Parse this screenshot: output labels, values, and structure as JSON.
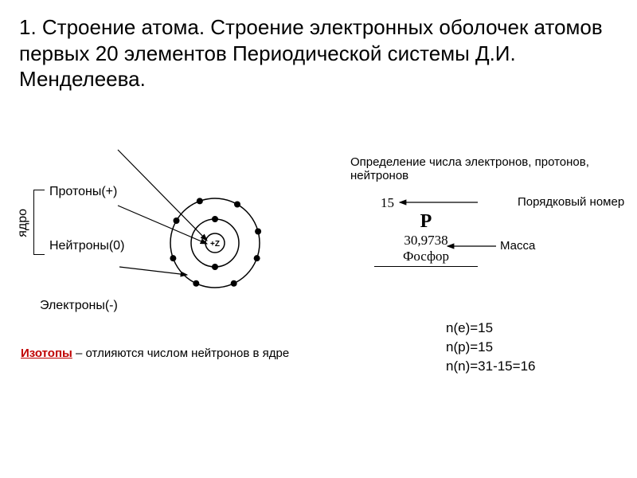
{
  "title": "1. Строение атома. Строение электронных оболочек атомов первых 20 элементов Периодической системы Д.И. Менделеева.",
  "subhead": "Определение числа электронов, протонов, нейтронов",
  "atom": {
    "nucleus_label": "ядро",
    "proton_label": "Протоны(+)",
    "neutron_label": "Нейтроны(0)",
    "electron_label": "Электроны(-)",
    "center_label": "+Z",
    "shell_radii": [
      30,
      56
    ],
    "nucleus_radius": 12,
    "electrons_inner_angles": [
      90,
      270
    ],
    "electrons_outer_angles": [
      20,
      65,
      115,
      160,
      210,
      250,
      300,
      345
    ],
    "electron_radius": 4,
    "stroke": "#000000",
    "fill_bg": "#ffffff"
  },
  "isotope": {
    "term": "Изотопы",
    "text": " – отлияются числом нейтронов в ядре",
    "term_color": "#c00000"
  },
  "element": {
    "atomic_number": "15",
    "symbol": "P",
    "mass": "30,9738",
    "name": "Фосфор",
    "ann_atomic": "Порядковый номер",
    "ann_mass": "Масса"
  },
  "counts": {
    "e": "n(e)=15",
    "p": "n(p)=15",
    "n": "n(n)=31-15=16"
  },
  "colors": {
    "text": "#000000",
    "accent": "#c00000",
    "bg": "#ffffff"
  }
}
